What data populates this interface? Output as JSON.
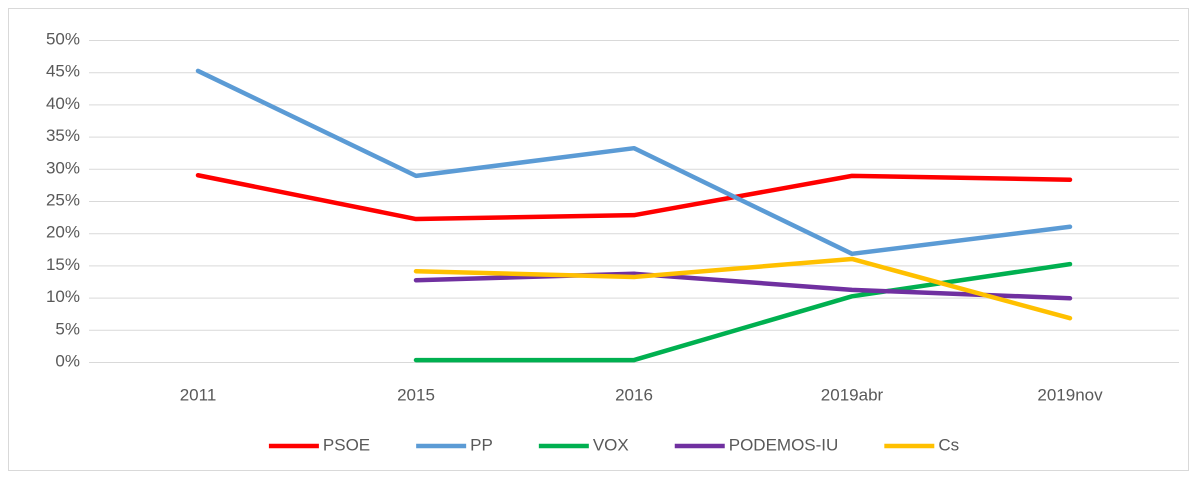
{
  "chart_data": {
    "type": "line",
    "categories": [
      "2011",
      "2015",
      "2016",
      "2019abr",
      "2019nov"
    ],
    "series": [
      {
        "name": "PSOE",
        "color": "#ff0000",
        "values": [
          29.0,
          22.2,
          22.8,
          28.9,
          28.3
        ]
      },
      {
        "name": "PP",
        "color": "#5b9bd5",
        "values": [
          45.2,
          28.9,
          33.2,
          16.8,
          21.0
        ]
      },
      {
        "name": "VOX",
        "color": "#00b050",
        "values": [
          null,
          0.3,
          0.3,
          10.2,
          15.2
        ]
      },
      {
        "name": "PODEMOS-IU",
        "color": "#7030a0",
        "values": [
          null,
          12.7,
          13.7,
          11.2,
          9.9
        ]
      },
      {
        "name": "Cs",
        "color": "#ffc000",
        "values": [
          null,
          14.1,
          13.2,
          16.0,
          6.8
        ]
      }
    ],
    "ylim": [
      0,
      50
    ],
    "yticks": [
      {
        "value": 0,
        "label": "0%"
      },
      {
        "value": 5,
        "label": "5%"
      },
      {
        "value": 10,
        "label": "10%"
      },
      {
        "value": 15,
        "label": "15%"
      },
      {
        "value": 20,
        "label": "20%"
      },
      {
        "value": 25,
        "label": "25%"
      },
      {
        "value": 30,
        "label": "30%"
      },
      {
        "value": 35,
        "label": "35%"
      },
      {
        "value": 40,
        "label": "40%"
      },
      {
        "value": 45,
        "label": "45%"
      },
      {
        "value": 50,
        "label": "50%"
      }
    ],
    "grid": true,
    "legend": "bottom"
  }
}
